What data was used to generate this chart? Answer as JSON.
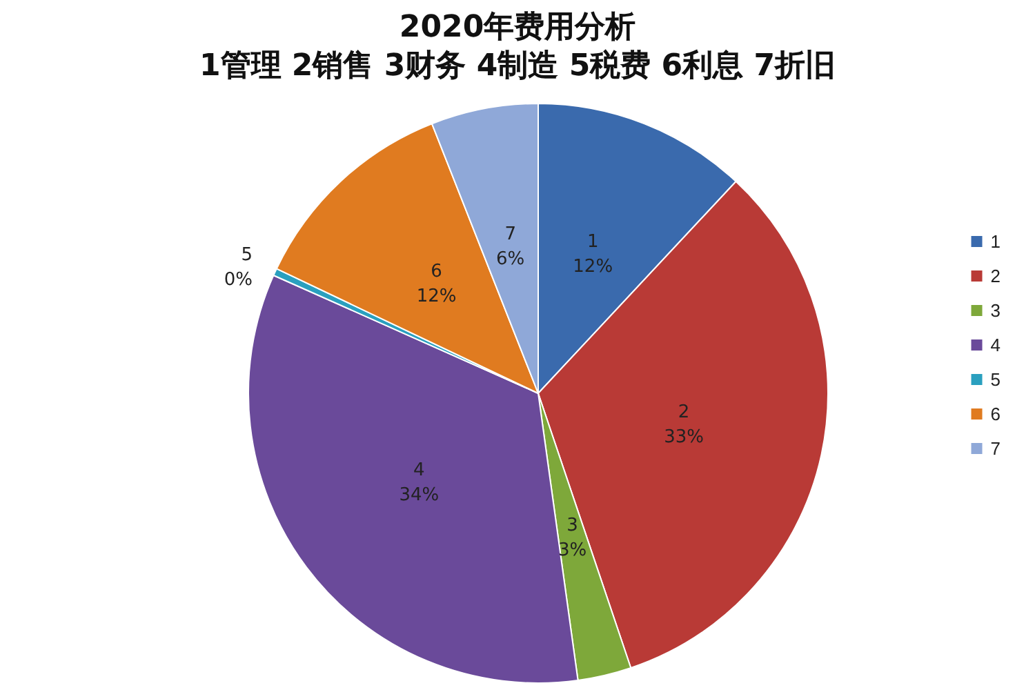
{
  "chart_data": {
    "type": "pie",
    "title": "2020年费用分析",
    "subtitle": "1管理 2销售 3财务 4制造 5税费 6利息 7折旧",
    "categories": [
      "1",
      "2",
      "3",
      "4",
      "5",
      "6",
      "7"
    ],
    "values": [
      12,
      33,
      3,
      34,
      0.4,
      12,
      6
    ],
    "colors": [
      "#3a6aad",
      "#b93a36",
      "#7ea83a",
      "#6a4a9a",
      "#2aa0bf",
      "#e07b20",
      "#8fa8d8"
    ],
    "value_labels": [
      "12%",
      "33%",
      "3%",
      "34%",
      "0%",
      "12%",
      "6%"
    ],
    "legend": "right"
  }
}
